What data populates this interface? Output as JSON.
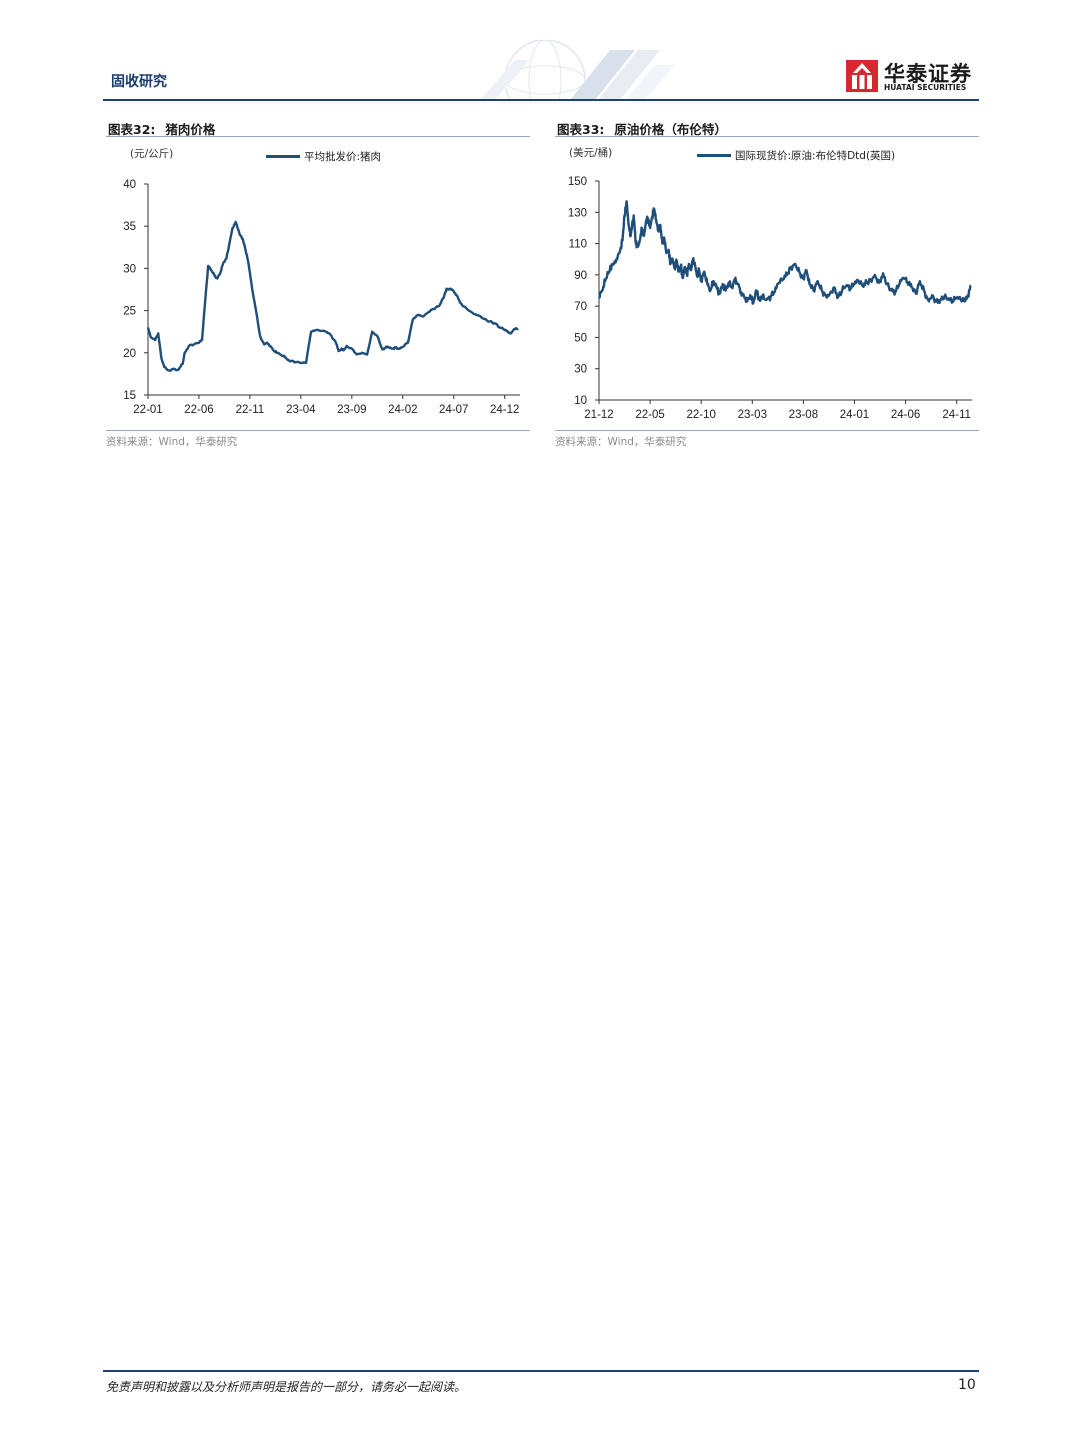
{
  "header": {
    "section_title": "固收研究",
    "logo_cn": "华泰证券",
    "logo_en": "HUATAI SECURITIES",
    "accent": "#1a3a6c"
  },
  "footer": {
    "disclaimer": "免责声明和披露以及分析师声明是报告的一部分，请务必一起阅读。",
    "page_number": "10"
  },
  "charts": {
    "left": {
      "label": "图表32:",
      "title": "猪肉价格",
      "unit": "(元/公斤)",
      "legend": "平均批发价:猪肉",
      "source": "资料来源：Wind，华泰研究"
    },
    "right": {
      "label": "图表33:",
      "title": "原油价格（布伦特）",
      "unit": "(美元/桶)",
      "legend": "国际现货价:原油:布伦特Dtd(英国)",
      "source": "资料来源：Wind，华泰研究"
    }
  },
  "chart_data": [
    {
      "type": "line",
      "title": "猪肉价格",
      "ylabel": "元/公斤",
      "ylim": [
        15,
        40
      ],
      "yticks": [
        15,
        20,
        25,
        30,
        35,
        40
      ],
      "xlim_months": [
        0,
        36.5
      ],
      "xticks": [
        {
          "m": 0,
          "label": "22-01"
        },
        {
          "m": 5,
          "label": "22-06"
        },
        {
          "m": 10,
          "label": "22-11"
        },
        {
          "m": 15,
          "label": "23-04"
        },
        {
          "m": 20,
          "label": "23-09"
        },
        {
          "m": 25,
          "label": "24-02"
        },
        {
          "m": 30,
          "label": "24-07"
        },
        {
          "m": 35,
          "label": "24-12"
        }
      ],
      "color": "#1f4e79",
      "series": [
        {
          "name": "平均批发价:猪肉",
          "x": [
            0,
            0.3,
            0.7,
            1.0,
            1.3,
            1.6,
            2.0,
            2.5,
            3.0,
            3.4,
            3.6,
            4.0,
            4.5,
            5.0,
            5.3,
            5.6,
            5.9,
            6.2,
            6.5,
            6.8,
            7.1,
            7.4,
            7.7,
            8.0,
            8.3,
            8.6,
            9.0,
            9.3,
            9.6,
            9.8,
            10.0,
            10.3,
            10.6,
            11.0,
            11.4,
            11.7,
            12.0,
            12.3,
            12.6,
            13.0,
            13.3,
            13.6,
            14.0,
            14.5,
            15.0,
            15.5,
            16.0,
            16.5,
            17.0,
            17.5,
            18.0,
            18.5,
            18.7,
            19.0,
            19.2,
            19.5,
            20.0,
            20.5,
            21.0,
            21.5,
            22.0,
            22.5,
            23.0,
            23.3,
            23.6,
            24.0,
            24.3,
            24.6,
            25.0,
            25.5,
            26.0,
            26.5,
            27.0,
            27.5,
            28.0,
            28.5,
            29.0,
            29.3,
            29.7,
            30.0,
            30.3,
            30.6,
            31.0,
            31.5,
            32.0,
            32.5,
            33.0,
            33.5,
            34.0,
            34.5,
            35.0,
            35.3,
            35.6,
            36.0,
            36.3
          ],
          "y": [
            23.0,
            21.8,
            21.5,
            22.3,
            19.5,
            18.3,
            17.9,
            18.1,
            18.0,
            18.7,
            20.0,
            20.8,
            21.0,
            21.2,
            21.5,
            26.0,
            30.3,
            29.8,
            29.2,
            28.8,
            29.5,
            30.7,
            31.2,
            33.0,
            34.8,
            35.5,
            34.0,
            33.5,
            32.0,
            31.0,
            29.5,
            27.0,
            25.0,
            22.0,
            21.0,
            21.2,
            20.8,
            20.3,
            20.0,
            19.8,
            19.6,
            19.3,
            19.0,
            18.9,
            18.8,
            18.8,
            22.5,
            22.7,
            22.6,
            22.5,
            22.0,
            21.0,
            20.2,
            20.5,
            20.3,
            20.8,
            20.5,
            19.8,
            20.0,
            19.8,
            22.5,
            22.0,
            20.4,
            20.6,
            20.7,
            20.5,
            20.6,
            20.5,
            20.7,
            21.2,
            24.0,
            24.5,
            24.3,
            24.8,
            25.2,
            25.5,
            26.5,
            27.6,
            27.6,
            27.3,
            26.8,
            26.0,
            25.5,
            25.0,
            24.6,
            24.4,
            24.0,
            23.7,
            23.5,
            23.0,
            22.7,
            22.5,
            22.3,
            22.8,
            22.9
          ]
        }
      ]
    },
    {
      "type": "line",
      "title": "原油价格（布伦特）",
      "ylabel": "美元/桶",
      "ylim": [
        10,
        150
      ],
      "yticks": [
        10,
        30,
        50,
        70,
        90,
        110,
        130,
        150
      ],
      "xlim_months": [
        0,
        36.5
      ],
      "xticks": [
        {
          "m": 0,
          "label": "21-12"
        },
        {
          "m": 5,
          "label": "22-05"
        },
        {
          "m": 10,
          "label": "22-10"
        },
        {
          "m": 15,
          "label": "23-03"
        },
        {
          "m": 20,
          "label": "23-08"
        },
        {
          "m": 25,
          "label": "24-01"
        },
        {
          "m": 30,
          "label": "24-06"
        },
        {
          "m": 35,
          "label": "24-11"
        }
      ],
      "color": "#1f4e79",
      "series": [
        {
          "name": "国际现货价:原油:布伦特Dtd(英国)",
          "x": [
            0,
            0.3,
            0.6,
            1.0,
            1.3,
            1.7,
            2.0,
            2.3,
            2.5,
            2.7,
            2.9,
            3.1,
            3.4,
            3.6,
            3.8,
            4.0,
            4.2,
            4.4,
            4.6,
            4.8,
            5.0,
            5.2,
            5.4,
            5.6,
            5.8,
            6.0,
            6.2,
            6.4,
            6.6,
            6.8,
            7.0,
            7.2,
            7.4,
            7.6,
            7.8,
            8.0,
            8.2,
            8.4,
            8.6,
            8.8,
            9.0,
            9.2,
            9.4,
            9.6,
            9.8,
            10.0,
            10.3,
            10.6,
            10.9,
            11.2,
            11.5,
            11.8,
            12.1,
            12.4,
            12.7,
            13.0,
            13.3,
            13.6,
            13.9,
            14.2,
            14.5,
            14.8,
            15.1,
            15.4,
            15.7,
            16.0,
            16.4,
            16.8,
            17.2,
            17.6,
            18.0,
            18.4,
            18.8,
            19.2,
            19.6,
            20.0,
            20.3,
            20.6,
            21.0,
            21.4,
            21.8,
            22.2,
            22.6,
            23.0,
            23.4,
            23.8,
            24.2,
            24.6,
            25.0,
            25.4,
            25.8,
            26.2,
            26.6,
            27.0,
            27.4,
            27.8,
            28.2,
            28.6,
            29.0,
            29.4,
            29.8,
            30.2,
            30.6,
            31.0,
            31.4,
            31.8,
            32.2,
            32.6,
            33.0,
            33.4,
            33.8,
            34.2,
            34.6,
            35.0,
            35.4,
            35.8,
            36.1,
            36.4
          ],
          "y": [
            76,
            80,
            86,
            92,
            97,
            100,
            104,
            112,
            128,
            137,
            122,
            115,
            128,
            110,
            108,
            112,
            120,
            115,
            124,
            126,
            120,
            127,
            132,
            125,
            118,
            122,
            110,
            113,
            104,
            106,
            97,
            100,
            94,
            99,
            92,
            96,
            88,
            95,
            90,
            97,
            93,
            100,
            96,
            89,
            93,
            86,
            92,
            84,
            80,
            86,
            82,
            78,
            84,
            80,
            85,
            82,
            87,
            84,
            79,
            76,
            73,
            77,
            72,
            80,
            74,
            76,
            74,
            76,
            79,
            85,
            87,
            90,
            95,
            97,
            92,
            88,
            93,
            84,
            80,
            86,
            80,
            77,
            78,
            82,
            76,
            80,
            83,
            81,
            84,
            86,
            83,
            85,
            87,
            90,
            85,
            91,
            84,
            80,
            79,
            84,
            88,
            85,
            82,
            78,
            86,
            80,
            74,
            77,
            73,
            74,
            76,
            74,
            73,
            75,
            74,
            73,
            77,
            83
          ]
        }
      ]
    }
  ]
}
